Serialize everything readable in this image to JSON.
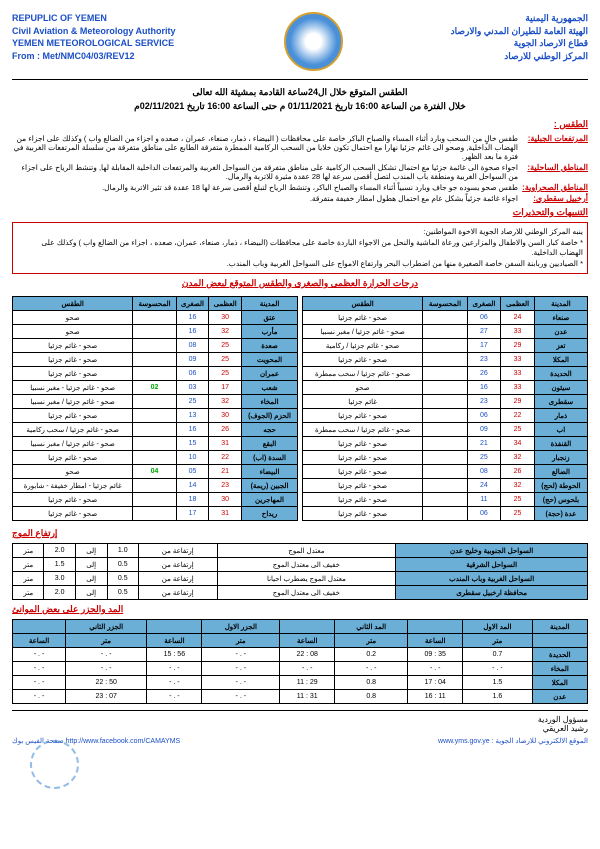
{
  "header": {
    "ar_line1": "الجمهورية اليمنية",
    "ar_line2": "الهيئة العامة للطيران المدني والارصاد",
    "ar_line3": "قطاع الارصاد الجوية",
    "ar_line4": "المركز الوطني للارصاد",
    "en_line1": "REPUPLIC OF YEMEN",
    "en_line2": "Civil Aviation & Meteorology Authority",
    "en_line3": "YEMEN METEOROLOGICAL SERVICE",
    "en_line4": "From : Met/NMC04/03/REV12"
  },
  "title_line1": "الطقس المتوقع خلال ال24ساعة القادمة بمشيئة الله تعالى",
  "title_line2": "خلال الفترة من الساعة 16:00 تاريخ 01/11/2021 م  حتى الساعة 16:00 تاريخ 02/11/2021م",
  "weather_heading": "الطقس :",
  "rows": [
    {
      "label": "المرتفعات الجبلية:",
      "text": "طقس خالٍ من السحب وبارد أثناء المساء والصباح الباكر خاصة على محافظات ( البيضاء ، ذمار، صنعاء، عمران ، صعده و اجزاء من الضالع واب ) وكذلك على اجزاء من الهضاب الداخلية, وصحو الى غائم جزئيا نهارا مع احتمال تكون خلايا من السحب الركامية الممطرة متفرقة الطابع على مناطق متفرقة من سلسلة المرتفعات الغربية في فترة ما بعد الظهر."
    },
    {
      "label": "المناطق الساحلية:",
      "text": "اجواء صحوة الى غائمة جزئيا مع احتمال تشكل السحب الركامية على مناطق متفرقة من السواحل الغربية والمرتفعات الداخلية المقابلة لها, وتنشط الرياح على اجزاء من السواحل الغربية ومنطقة باب المندب لتصل أقصى سرعة لها 28 عقدة مثيرة للاتربة والرمال."
    },
    {
      "label": "المناطق الصحراوية:",
      "text": "طقس صحو يسوده جو جاف وبارد نسبياً أثناء المساء والصباح الباكر، وتنشط الرياح لتبلغ أقصى سرعة لها 18 عقدة قد تثير الاتربة والرمال."
    },
    {
      "label": "أرخبيل سقطرى:",
      "text": "اجواء غائمة جزئياً بشكل عام مع احتمال هطول امطار خفيفة متفرقة."
    }
  ],
  "alerts_heading": "التنبيهات والتحذيرات",
  "alerts": [
    "ينبه المركز الوطني للارصاد الجوية الاخوة المواطنين:",
    "* خاصة كبار السن والاطفال والمزارعين ورعاة الماشية والنحل من الاجواء الباردة خاصة على  محافظات (البيضاء ، ذمار، صنعاء، عمران، صعده ، اجزاء من الضالع واب ) وكذلك على  الهضاب الداخلية.",
    "* الصياديين وربابنة السفن خاصة الصغيرة منها من اضطراب البحر وارتفاع الامواج على السواحل الغربية وباب المندب."
  ],
  "temp_heading": "درجات الحرارة العظمى والصغرى والطقس المتوقع لبعض المدن",
  "cols": [
    "المدينة",
    "العظمى",
    "الصغرى",
    "المحسوسة",
    "الطقس"
  ],
  "left_cities": [
    [
      "صنعاء",
      "24",
      "06",
      "",
      "صحو - غائم جزئيا"
    ],
    [
      "عدن",
      "33",
      "27",
      "",
      "صحو - غائم جزئيا / مغبر نسبيا"
    ],
    [
      "تعز",
      "29",
      "17",
      "",
      "صحو - غائم جزئيا / ركامية"
    ],
    [
      "المكلا",
      "33",
      "23",
      "",
      "صحو - غائم جزئيا"
    ],
    [
      "الحديدة",
      "33",
      "26",
      "",
      "صحو - غائم جزئيا / سحب ممطرة"
    ],
    [
      "سيئون",
      "33",
      "16",
      "",
      "صحو"
    ],
    [
      "سقطرى",
      "29",
      "23",
      "",
      "غائم جزئيا"
    ],
    [
      "ذمار",
      "22",
      "06",
      "",
      "صحو - غائم جزئيا"
    ],
    [
      "اب",
      "25",
      "09",
      "",
      "صحو - غائم جزئيا / سحب ممطرة"
    ],
    [
      "القنفذة",
      "34",
      "21",
      "",
      "صحو - غائم جزئيا"
    ],
    [
      "زنجبار",
      "32",
      "25",
      "",
      "صحو - غائم جزئيا"
    ],
    [
      "الضالع",
      "26",
      "08",
      "",
      "صحو - غائم جزئيا"
    ],
    [
      "الحوطة (لحج)",
      "32",
      "24",
      "",
      "صحو - غائم جزئيا"
    ],
    [
      "بلحوس (حج)",
      "25",
      "11",
      "",
      "صحو - غائم جزئيا"
    ],
    [
      "عدة (حجة)",
      "25",
      "06",
      "",
      "صحو - غائم جزئيا"
    ]
  ],
  "right_cities": [
    [
      "عتق",
      "30",
      "16",
      "",
      "صحو"
    ],
    [
      "مأرب",
      "32",
      "16",
      "",
      "صحو"
    ],
    [
      "صعدة",
      "25",
      "08",
      "",
      "صحو - غائم جزئيا"
    ],
    [
      "المحويت",
      "25",
      "09",
      "",
      "صحو - غائم جزئيا"
    ],
    [
      "عمران",
      "25",
      "06",
      "",
      "صحو - غائم جزئيا"
    ],
    [
      "شعب",
      "17",
      "03",
      "02",
      "صحو - غائم جزئيا - مغبر نسبيا"
    ],
    [
      "المخاء",
      "32",
      "25",
      "",
      "صحو - غائم جزئيا / مغبر نسبيا"
    ],
    [
      "الحزم (الجوف)",
      "30",
      "13",
      "",
      "صحو - غائم جزئيا"
    ],
    [
      "حجه",
      "26",
      "16",
      "",
      "صحو - غائم جزئيا / سحب ركامية"
    ],
    [
      "البقع",
      "31",
      "15",
      "",
      "صحو - غائم جزئيا / مغبر نسبيا"
    ],
    [
      "السدة (اب)",
      "22",
      "10",
      "",
      "صحو - غائم جزئيا"
    ],
    [
      "البيضاء",
      "21",
      "05",
      "04",
      "صحو"
    ],
    [
      "الجبين (ريمة)",
      "23",
      "14",
      "",
      "غائم جزئيا - امطار خفيفة - شابورة"
    ],
    [
      "المهاجرين",
      "30",
      "18",
      "",
      "صحو - غائم جزئيا"
    ],
    [
      "ريداح",
      "31",
      "17",
      "",
      "صحو - غائم جزئيا"
    ]
  ],
  "wave_heading": "إرتفاع الموج",
  "wave_rows": [
    [
      "السواحل الجنوبية وخليج عدن",
      "معتدل الموج",
      "إرتفاعة من",
      "1.0",
      "إلى",
      "2.0",
      "متر"
    ],
    [
      "السواحل الشرقية",
      "خفيف الى معتدل الموج",
      "إرتفاعة من",
      "0.5",
      "إلى",
      "1.5",
      "متر"
    ],
    [
      "السواحل الغربية وباب المندب",
      "معتدل الموج يضطرب احيانا",
      "إرتفاعة من",
      "0.5",
      "إلى",
      "3.0",
      "متر"
    ],
    [
      "محافظة ارخبيل سقطرى",
      "خفيف الى معتدل الموج",
      "إرتفاعة من",
      "0.5",
      "إلى",
      "2.0",
      "متر"
    ]
  ],
  "tide_heading": "المد والجزر على بعض الموانئ",
  "tide_hdr": [
    "المدينة",
    "المد الاول",
    "",
    "المد الثاني",
    "",
    "الجزر الاول",
    "",
    "الجزر الثاني",
    ""
  ],
  "tide_sub": [
    "",
    "متر",
    "الساعة",
    "متر",
    "الساعة",
    "متر",
    "الساعة",
    "متر",
    "الساعة"
  ],
  "tide_rows": [
    [
      "الحديدة",
      "0.7",
      "35 : 09",
      "0.2",
      "08 : 22",
      "- . -",
      "56 : 15",
      "- . -",
      "- . -"
    ],
    [
      "المخاء",
      "- . -",
      "- . -",
      "- . -",
      "- . -",
      "- . -",
      "- . -",
      "- . -",
      "- . -"
    ],
    [
      "المكلا",
      "1.5",
      "04 : 17",
      "0.8",
      "29 : 11",
      "- . -",
      "- . -",
      "50 : 22",
      "- . -"
    ],
    [
      "عدن",
      "1.6",
      "11 : 16",
      "0.8",
      "31 : 11",
      "- . -",
      "- . -",
      "07 : 23",
      "- . -"
    ]
  ],
  "sig_title": "مسؤول الوردية",
  "sig_name": "رشيد العريقي",
  "link_site": "الموقع الالكتروني للارصاد الجوية : www.yms.gov.ye",
  "link_fb": "صفحة الفيس بوك       http://www.facebook.com/CAMAYMS"
}
